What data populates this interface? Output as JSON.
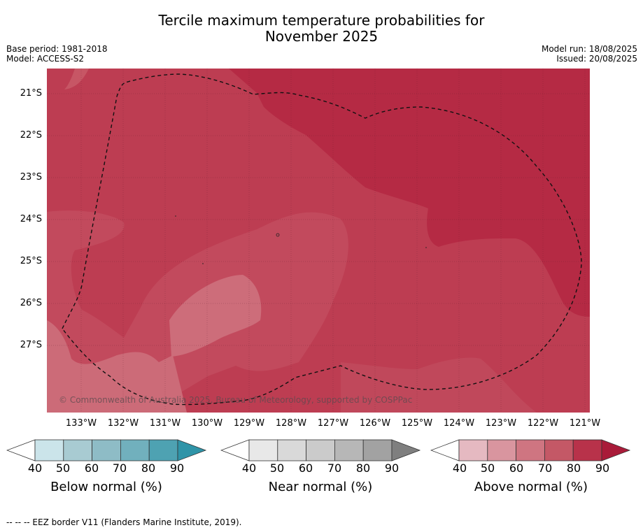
{
  "title_line1": "Tercile maximum temperature probabilities for",
  "title_line2": "November 2025",
  "meta": {
    "base_period": "Base period: 1981-2018",
    "model": "Model: ACCESS-S2",
    "model_run": "Model run: 18/08/2025",
    "issued": "Issued: 20/08/2025"
  },
  "map": {
    "lat_labels": [
      "21°S",
      "22°S",
      "23°S",
      "24°S",
      "25°S",
      "26°S",
      "27°S"
    ],
    "lon_labels": [
      "133°W",
      "132°W",
      "131°W",
      "130°W",
      "129°W",
      "128°W",
      "127°W",
      "126°W",
      "125°W",
      "124°W",
      "123°W",
      "122°W",
      "121°W"
    ],
    "copyright": "© Commonwealth of Australia 2025, Bureau of Meteorology, supported by COSPPac",
    "colors": {
      "above_40": "#e6b8c0",
      "above_50": "#d8949f",
      "above_60": "#cf6f7e",
      "above_70": "#c0485b",
      "above_80": "#b62d44",
      "above_90": "#ad1a3a"
    }
  },
  "colorbars": [
    {
      "label": "Below normal (%)",
      "ticks": [
        "40",
        "50",
        "60",
        "70",
        "80",
        "90"
      ],
      "colors": [
        "#cbe4ea",
        "#a8cbd2",
        "#8ebcc6",
        "#71b0bd",
        "#4ea2b2",
        "#2f94a8"
      ]
    },
    {
      "label": "Near normal (%)",
      "ticks": [
        "40",
        "50",
        "60",
        "70",
        "80",
        "90"
      ],
      "colors": [
        "#e8e8e8",
        "#d9d9d9",
        "#cbcbcb",
        "#b7b7b7",
        "#a2a2a2",
        "#7f7f7f"
      ]
    },
    {
      "label": "Above normal (%)",
      "ticks": [
        "40",
        "50",
        "60",
        "70",
        "80",
        "90"
      ],
      "colors": [
        "#e5b9c1",
        "#d9959f",
        "#cf7581",
        "#c45866",
        "#b8324a",
        "#a91b39"
      ]
    }
  ],
  "footer": "--  --  -- EEZ border V11 (Flanders Marine Institute, 2019)."
}
